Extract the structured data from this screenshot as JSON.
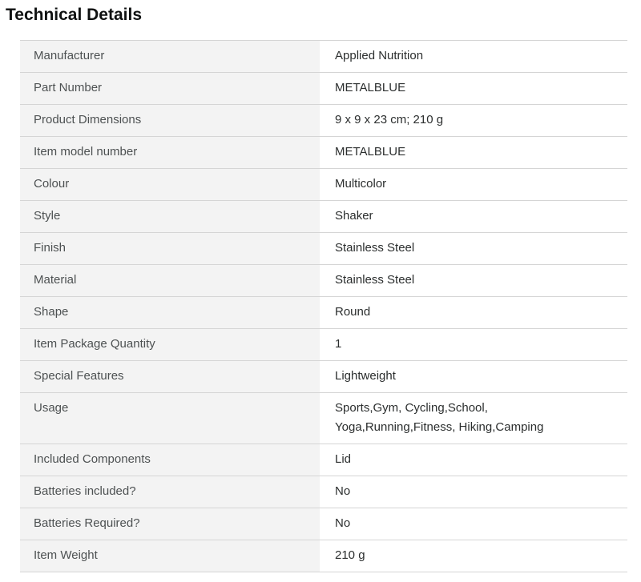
{
  "page": {
    "title": "Technical Details"
  },
  "colors": {
    "label_bg": "#f3f3f3",
    "border": "#d5d5d5",
    "heading_text": "#0f1111",
    "label_text": "#4d5152",
    "value_text": "#2b2e2e"
  },
  "table": {
    "rows": [
      {
        "label": "Manufacturer",
        "value": "Applied Nutrition"
      },
      {
        "label": "Part Number",
        "value": "METALBLUE"
      },
      {
        "label": "Product Dimensions",
        "value": "9 x 9 x 23 cm; 210 g"
      },
      {
        "label": "Item model number",
        "value": "METALBLUE"
      },
      {
        "label": "Colour",
        "value": "Multicolor"
      },
      {
        "label": "Style",
        "value": "Shaker"
      },
      {
        "label": "Finish",
        "value": "Stainless Steel"
      },
      {
        "label": "Material",
        "value": "Stainless Steel"
      },
      {
        "label": "Shape",
        "value": "Round"
      },
      {
        "label": "Item Package Quantity",
        "value": "1"
      },
      {
        "label": "Special Features",
        "value": "Lightweight"
      },
      {
        "label": "Usage",
        "value": "Sports,Gym, Cycling,School,\nYoga,Running,Fitness, Hiking,Camping"
      },
      {
        "label": "Included Components",
        "value": "Lid"
      },
      {
        "label": "Batteries included?",
        "value": "No"
      },
      {
        "label": "Batteries Required?",
        "value": "No"
      },
      {
        "label": "Item Weight",
        "value": "210 g"
      }
    ]
  }
}
